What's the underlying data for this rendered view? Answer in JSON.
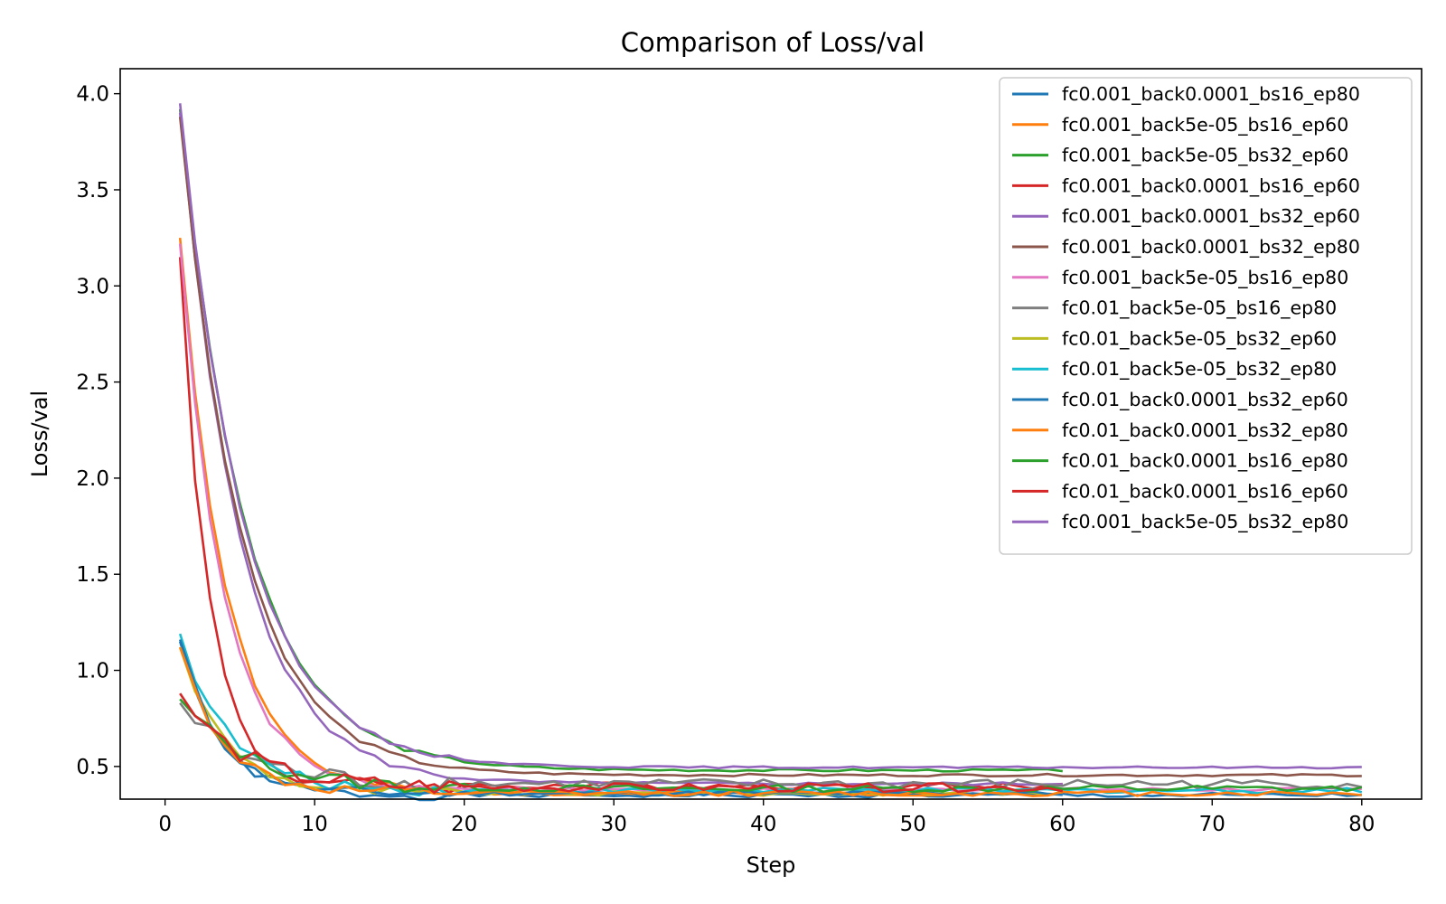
{
  "chart_data": {
    "type": "line",
    "title": "Comparison of Loss/val",
    "xlabel": "Step",
    "ylabel": "Loss/val",
    "xlim": [
      -3,
      84
    ],
    "ylim": [
      0.33,
      4.13
    ],
    "xticks": [
      0,
      10,
      20,
      30,
      40,
      50,
      60,
      70,
      80
    ],
    "yticks": [
      0.5,
      1.0,
      1.5,
      2.0,
      2.5,
      3.0,
      3.5,
      4.0
    ],
    "grid": false,
    "legend_position": "top-right",
    "series": [
      {
        "name": "fc0.001_back0.0001_bs16_ep80",
        "color": "#1f77b4",
        "start": 1.15,
        "floor": 0.35,
        "tau": 2.6,
        "length": 80,
        "noise": 0.012,
        "seed": 1
      },
      {
        "name": "fc0.001_back5e-05_bs16_ep60",
        "color": "#ff7f0e",
        "start": 3.25,
        "floor": 0.36,
        "tau": 3.1,
        "length": 60,
        "noise": 0.012,
        "seed": 2
      },
      {
        "name": "fc0.001_back5e-05_bs32_ep60",
        "color": "#2ca02c",
        "start": 3.92,
        "floor": 0.48,
        "tau": 4.4,
        "length": 60,
        "noise": 0.006,
        "seed": 3
      },
      {
        "name": "fc0.001_back0.0001_bs16_ep60",
        "color": "#d62728",
        "start": 3.15,
        "floor": 0.4,
        "tau": 1.9,
        "length": 60,
        "noise": 0.018,
        "seed": 4
      },
      {
        "name": "fc0.001_back0.0001_bs32_ep60",
        "color": "#9467bd",
        "start": 3.9,
        "floor": 0.41,
        "tau": 4.0,
        "length": 60,
        "noise": 0.008,
        "seed": 5
      },
      {
        "name": "fc0.001_back0.0001_bs32_ep80",
        "color": "#8c564b",
        "start": 3.88,
        "floor": 0.455,
        "tau": 4.1,
        "length": 80,
        "noise": 0.006,
        "seed": 6
      },
      {
        "name": "fc0.001_back5e-05_bs16_ep80",
        "color": "#e377c2",
        "start": 3.22,
        "floor": 0.38,
        "tau": 2.9,
        "length": 80,
        "noise": 0.01,
        "seed": 7
      },
      {
        "name": "fc0.01_back5e-05_bs16_ep80",
        "color": "#7f7f7f",
        "start": 0.83,
        "floor": 0.41,
        "tau": 4.0,
        "length": 80,
        "noise": 0.025,
        "seed": 8
      },
      {
        "name": "fc0.01_back5e-05_bs32_ep60",
        "color": "#bcbd22",
        "start": 1.12,
        "floor": 0.36,
        "tau": 3.0,
        "length": 60,
        "noise": 0.012,
        "seed": 9
      },
      {
        "name": "fc0.01_back5e-05_bs32_ep80",
        "color": "#17becf",
        "start": 1.19,
        "floor": 0.375,
        "tau": 3.2,
        "length": 80,
        "noise": 0.014,
        "seed": 10
      },
      {
        "name": "fc0.01_back0.0001_bs32_ep60",
        "color": "#1f77b4",
        "start": 1.16,
        "floor": 0.36,
        "tau": 2.6,
        "length": 60,
        "noise": 0.012,
        "seed": 11
      },
      {
        "name": "fc0.01_back0.0001_bs32_ep80",
        "color": "#ff7f0e",
        "start": 1.12,
        "floor": 0.36,
        "tau": 2.8,
        "length": 80,
        "noise": 0.014,
        "seed": 12
      },
      {
        "name": "fc0.01_back0.0001_bs16_ep80",
        "color": "#2ca02c",
        "start": 0.85,
        "floor": 0.385,
        "tau": 4.5,
        "length": 80,
        "noise": 0.018,
        "seed": 13
      },
      {
        "name": "fc0.01_back0.0001_bs16_ep60",
        "color": "#d62728",
        "start": 0.88,
        "floor": 0.39,
        "tau": 4.0,
        "length": 60,
        "noise": 0.022,
        "seed": 14
      },
      {
        "name": "fc0.001_back5e-05_bs32_ep80",
        "color": "#9467bd",
        "start": 3.95,
        "floor": 0.495,
        "tau": 4.3,
        "length": 80,
        "noise": 0.005,
        "seed": 15
      }
    ]
  }
}
